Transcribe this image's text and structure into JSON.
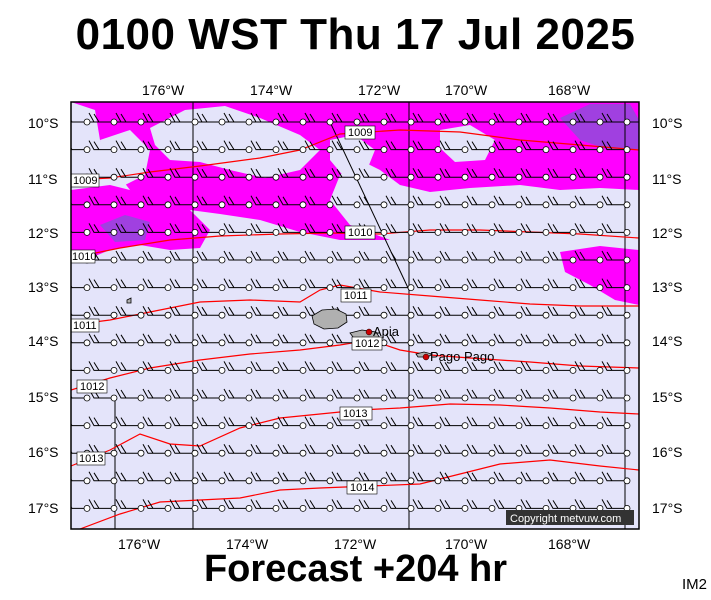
{
  "title": "0100 WST Thu 17 Jul 2025",
  "subtitle": "Forecast +204 hr",
  "image_tag": "IM2",
  "copyright": "Copyright metvuw.com",
  "lon_labels": [
    "176°W",
    "174°W",
    "172°W",
    "170°W",
    "168°W"
  ],
  "lat_labels": [
    "10°S",
    "11°S",
    "12°S",
    "13°S",
    "14°S",
    "15°S",
    "16°S",
    "17°S"
  ],
  "isobar_labels": [
    "1009",
    "1009",
    "1010",
    "1010",
    "1011",
    "1011",
    "1012",
    "1012",
    "1013",
    "1013",
    "1014"
  ],
  "places": [
    "Apia",
    "Pago Pago"
  ],
  "colors": {
    "background_fill": "#e4e4fa",
    "precip_light": "#ff00ff",
    "precip_heavy": "#a040e0",
    "isobar": "#ff0000",
    "wind_barb": "#000000",
    "land": "#b0b0b0",
    "town_marker": "#cc0000"
  },
  "wind_barbs": "south-westerly barbs, ~15 knots, on regular grid"
}
